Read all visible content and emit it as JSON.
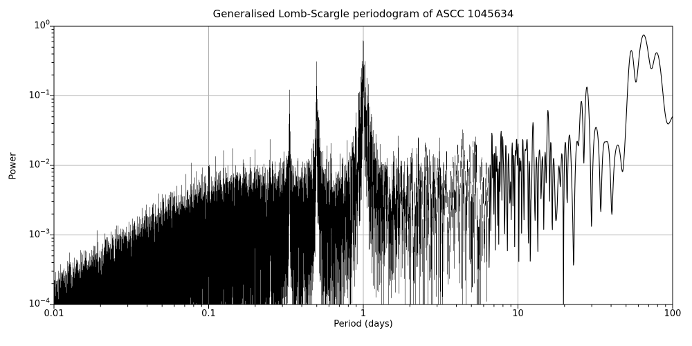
{
  "chart_data": {
    "type": "line",
    "title": "Generalised Lomb-Scargle periodogram of ASCC 1045634",
    "xlabel": "Period (days)",
    "ylabel": "Power",
    "xscale": "log",
    "yscale": "log",
    "xlim": [
      0.01,
      100
    ],
    "ylim": [
      0.0001,
      1
    ],
    "grid": true,
    "legend": "none",
    "colors": {
      "line": "#000000",
      "grid": "#b0b0b0",
      "frame": "#000000",
      "background": "#ffffff",
      "text": "#000000"
    },
    "x_ticks": [
      {
        "label": "0.01",
        "value": 0.01
      },
      {
        "label": "0.1",
        "value": 0.1
      },
      {
        "label": "1",
        "value": 1
      },
      {
        "label": "10",
        "value": 10
      },
      {
        "label": "100",
        "value": 100
      }
    ],
    "y_ticks": [
      {
        "base": "10",
        "exp": "0",
        "value": 1
      },
      {
        "base": "10",
        "exp": "−1",
        "value": 0.1
      },
      {
        "base": "10",
        "exp": "−2",
        "value": 0.01
      },
      {
        "base": "10",
        "exp": "−3",
        "value": 0.001
      },
      {
        "base": "10",
        "exp": "−4",
        "value": 0.0001
      }
    ],
    "peaks": [
      {
        "period_days": 65,
        "power": 0.75,
        "note": "highest peak, broad smooth bump"
      },
      {
        "period_days": 54,
        "power": 0.45,
        "note": "side bump"
      },
      {
        "period_days": 79,
        "power": 0.39,
        "note": "side bump"
      },
      {
        "period_days": 1.0,
        "power": 0.6,
        "note": "1-day alias spike"
      },
      {
        "period_days": 0.5,
        "power": 0.3,
        "note": "1/2-day alias spike"
      },
      {
        "period_days": 0.333,
        "power": 0.105,
        "note": "1/3-day alias spike"
      },
      {
        "period_days": 0.25,
        "power": 0.018,
        "note": "1/4-day alias spike"
      }
    ],
    "noise_floor_description": "dense black noise mass rising from ~2e-4 at P=0.01 to ~1e-2 near P=1, spiky 0.01-0.07 band for P=2-20, oscillating 0.03-0.13 with deep nulls for P=20-50, minimum 0.034 near P=90, 0.05 at P=100",
    "synthesis": {
      "seed": 1337,
      "n_components": 40,
      "window_scale": 280,
      "dense_threshold": 0.0008,
      "sample_df": 0.0004,
      "min_samples_per_column": 6,
      "max_samples_per_column": 64,
      "envelope_log10P_log10power": [
        [
          -2.0,
          -4.35
        ],
        [
          -1.7,
          -3.95
        ],
        [
          -1.5,
          -3.6
        ],
        [
          -1.2,
          -3.15
        ],
        [
          -1.0,
          -2.95
        ],
        [
          -0.7,
          -2.75
        ],
        [
          -0.4,
          -2.62
        ],
        [
          0.0,
          -2.5
        ],
        [
          0.3,
          -2.38
        ],
        [
          0.6,
          -2.25
        ],
        [
          0.9,
          -2.05
        ],
        [
          1.2,
          -1.85
        ],
        [
          1.45,
          -1.7
        ],
        [
          1.65,
          -1.6
        ],
        [
          1.85,
          -1.65
        ],
        [
          2.0,
          -1.7
        ]
      ],
      "harmonic_cores": [
        [
          1,
          0.6
        ],
        [
          2,
          0.3
        ],
        [
          3,
          0.105
        ],
        [
          4,
          0.018
        ],
        [
          5,
          0.013
        ],
        [
          6,
          0.012
        ],
        [
          7,
          0.011
        ],
        [
          8,
          0.01
        ],
        [
          9,
          0.0095
        ],
        [
          10,
          0.009
        ],
        [
          11,
          0.0085
        ]
      ],
      "core_width": 0.0022,
      "harmonic_tail": {
        "from": 12,
        "to": 60,
        "amp": 0.009,
        "ref": 11,
        "exp": 2
      },
      "skirts": [
        [
          1,
          0.1,
          0.05
        ],
        [
          2,
          0.038,
          0.04
        ],
        [
          3,
          0.012,
          0.035
        ]
      ],
      "bumps": [
        [
          0.01538,
          0.00085,
          0.7
        ],
        [
          0.0185,
          0.0006,
          0.42
        ],
        [
          0.01265,
          0.0006,
          0.36
        ],
        [
          0.0145,
          0.0035,
          0.045
        ],
        [
          0.0095,
          0.0008,
          0.032
        ]
      ]
    }
  }
}
